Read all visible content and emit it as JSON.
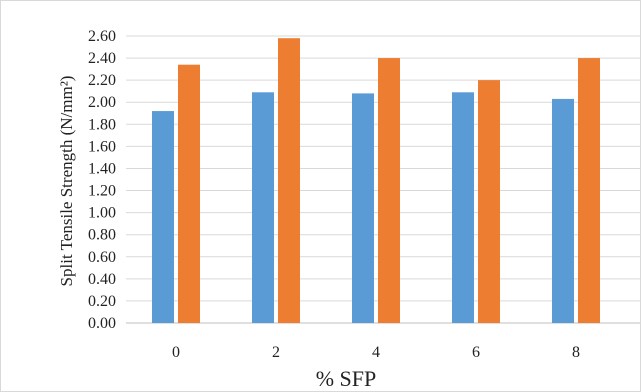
{
  "chart_data": {
    "type": "bar",
    "title": "",
    "xlabel": "% SFP",
    "ylabel": "Split Tensile  Strength (N/mm²)",
    "categories": [
      "0",
      "2",
      "4",
      "6",
      "8"
    ],
    "series": [
      {
        "color": "#5b9bd5",
        "values": [
          1.92,
          2.09,
          2.08,
          2.09,
          2.03
        ]
      },
      {
        "color": "#ed7d31",
        "values": [
          2.34,
          2.58,
          2.4,
          2.2,
          2.4
        ]
      }
    ],
    "ylim": [
      0,
      2.6
    ],
    "yticks": [
      "0.00",
      "0.20",
      "0.40",
      "0.60",
      "0.80",
      "1.00",
      "1.20",
      "1.40",
      "1.60",
      "1.80",
      "2.00",
      "2.20",
      "2.40",
      "2.60"
    ],
    "grid": true,
    "legend": "none"
  }
}
